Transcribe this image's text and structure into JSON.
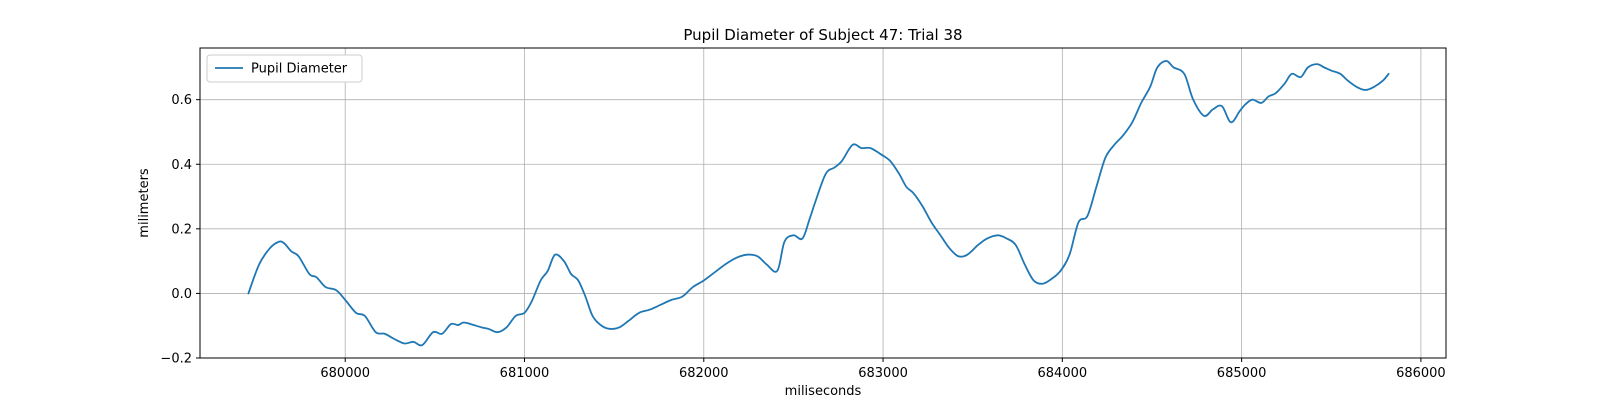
{
  "chart_data": {
    "type": "line",
    "title": "Pupil Diameter of Subject 47: Trial 38",
    "xlabel": "miliseconds",
    "ylabel": "milimeters",
    "xlim": [
      679190,
      686140
    ],
    "ylim": [
      -0.2,
      0.76
    ],
    "xticks": [
      680000,
      681000,
      682000,
      683000,
      684000,
      685000,
      686000
    ],
    "yticks": [
      -0.2,
      0.0,
      0.2,
      0.4,
      0.6
    ],
    "ytick_labels": [
      "−0.2",
      "0.0",
      "0.2",
      "0.4",
      "0.6"
    ],
    "grid": true,
    "legend": {
      "placement": "top-left",
      "entries": [
        "Pupil Diameter"
      ]
    },
    "series": [
      {
        "name": "Pupil Diameter",
        "color": "#1f77b4",
        "x": [
          679460,
          679520,
          679580,
          679630,
          679660,
          679700,
          679740,
          679800,
          679840,
          679890,
          679950,
          680000,
          680060,
          680110,
          680170,
          680220,
          680270,
          680330,
          680380,
          680430,
          680490,
          680540,
          680590,
          680630,
          680660,
          680700,
          680760,
          680800,
          680850,
          680900,
          680950,
          681000,
          681040,
          681090,
          681130,
          681170,
          681220,
          681260,
          681300,
          681340,
          681380,
          681430,
          681480,
          681530,
          681580,
          681640,
          681700,
          681760,
          681820,
          681880,
          681940,
          682000,
          682060,
          682120,
          682180,
          682240,
          682300,
          682350,
          682410,
          682450,
          682500,
          682550,
          682590,
          682620,
          682680,
          682730,
          682770,
          682830,
          682880,
          682930,
          682990,
          683040,
          683090,
          683130,
          683170,
          683220,
          683270,
          683320,
          683370,
          683420,
          683470,
          683530,
          683580,
          683640,
          683690,
          683740,
          683790,
          683840,
          683890,
          683940,
          683990,
          684040,
          684090,
          684140,
          684190,
          684240,
          684290,
          684340,
          684390,
          684440,
          684490,
          684530,
          684580,
          684620,
          684680,
          684730,
          684790,
          684840,
          684890,
          684940,
          684990,
          685020,
          685060,
          685110,
          685150,
          685190,
          685240,
          685280,
          685330,
          685370,
          685420,
          685460,
          685500,
          685550,
          685590,
          685640,
          685690,
          685740,
          685790,
          685820
        ],
        "values": [
          0.0,
          0.09,
          0.14,
          0.16,
          0.155,
          0.13,
          0.115,
          0.06,
          0.05,
          0.02,
          0.01,
          -0.02,
          -0.06,
          -0.07,
          -0.12,
          -0.125,
          -0.14,
          -0.155,
          -0.15,
          -0.16,
          -0.12,
          -0.125,
          -0.095,
          -0.098,
          -0.09,
          -0.095,
          -0.105,
          -0.11,
          -0.12,
          -0.105,
          -0.07,
          -0.06,
          -0.025,
          0.04,
          0.07,
          0.12,
          0.1,
          0.06,
          0.04,
          -0.01,
          -0.07,
          -0.1,
          -0.11,
          -0.105,
          -0.085,
          -0.06,
          -0.05,
          -0.035,
          -0.02,
          -0.01,
          0.02,
          0.04,
          0.065,
          0.09,
          0.11,
          0.12,
          0.115,
          0.09,
          0.07,
          0.16,
          0.18,
          0.17,
          0.23,
          0.28,
          0.37,
          0.39,
          0.41,
          0.46,
          0.45,
          0.45,
          0.43,
          0.41,
          0.37,
          0.33,
          0.31,
          0.27,
          0.22,
          0.18,
          0.14,
          0.115,
          0.12,
          0.15,
          0.17,
          0.18,
          0.17,
          0.15,
          0.09,
          0.04,
          0.03,
          0.045,
          0.07,
          0.12,
          0.22,
          0.24,
          0.33,
          0.42,
          0.46,
          0.49,
          0.53,
          0.59,
          0.64,
          0.7,
          0.72,
          0.7,
          0.68,
          0.6,
          0.55,
          0.57,
          0.58,
          0.53,
          0.565,
          0.585,
          0.6,
          0.59,
          0.61,
          0.62,
          0.65,
          0.68,
          0.67,
          0.7,
          0.71,
          0.7,
          0.69,
          0.68,
          0.66,
          0.64,
          0.63,
          0.64,
          0.66,
          0.68
        ]
      }
    ]
  }
}
